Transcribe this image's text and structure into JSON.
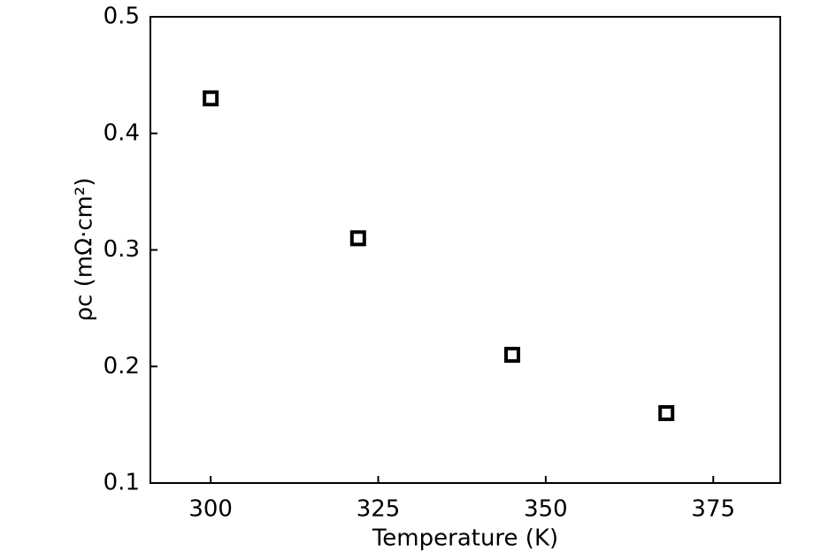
{
  "chart_data": {
    "type": "scatter",
    "x_label": "Temperature (K)",
    "y_label": "ρc (mΩ·cm²)",
    "x": [
      300,
      322,
      345,
      368
    ],
    "values": [
      0.43,
      0.31,
      0.21,
      0.16
    ],
    "color": "#000000",
    "xlim": [
      291,
      385
    ],
    "xticks": [
      300,
      325,
      350,
      375
    ],
    "ylim": [
      0.1,
      0.5
    ],
    "yticks": [
      0.1,
      0.2,
      0.3,
      0.4,
      0.5
    ]
  }
}
